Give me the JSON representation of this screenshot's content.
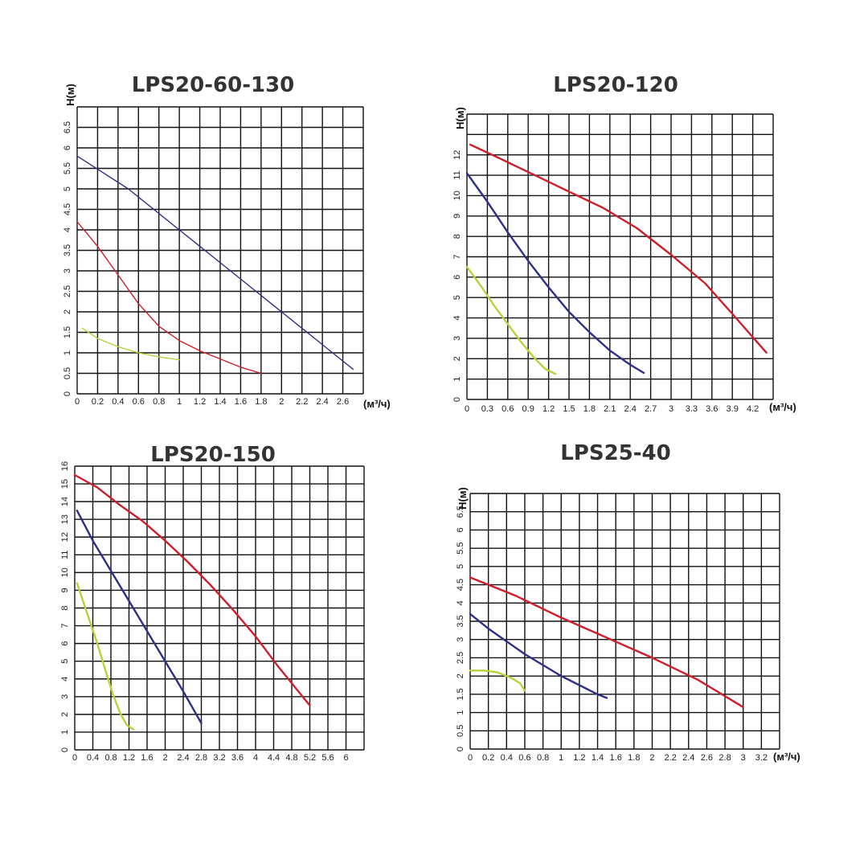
{
  "chart_data": [
    {
      "type": "line",
      "title": "LPS20-60-130",
      "ylabel": "H(м)",
      "xunit": "(м³/ч)",
      "xlim": [
        0,
        2.8
      ],
      "ylim": [
        0,
        7
      ],
      "xticks": [
        0,
        0.2,
        0.4,
        0.6,
        0.8,
        1,
        1.2,
        1.4,
        1.6,
        1.8,
        2,
        2.2,
        2.4,
        2.6
      ],
      "xtick_labels": [
        "0",
        "0.2",
        "0.4",
        "0.6",
        "0.8",
        "1",
        "1.2",
        "1.4",
        "1.6",
        "1.8",
        "2",
        "2.2",
        "2.4",
        "2.6"
      ],
      "yticks": [
        0,
        0.5,
        1,
        1.5,
        2,
        2.5,
        3,
        3.5,
        4,
        4.5,
        5,
        5.5,
        6,
        6.5
      ],
      "ytick_labels": [
        "0",
        "0.5",
        "1",
        "1.5",
        "2",
        "2.5",
        "3",
        "3.5",
        "4",
        "4.5",
        "5",
        "5.5",
        "6",
        "6.5"
      ],
      "series": [
        {
          "color": "#2f2f86",
          "points": [
            [
              0,
              5.8
            ],
            [
              0.5,
              5.0
            ],
            [
              1.0,
              4.0
            ],
            [
              1.5,
              3.0
            ],
            [
              2.0,
              2.0
            ],
            [
              2.5,
              1.0
            ],
            [
              2.7,
              0.6
            ]
          ]
        },
        {
          "color": "#cc1f2b",
          "points": [
            [
              0,
              4.2
            ],
            [
              0.2,
              3.6
            ],
            [
              0.4,
              2.9
            ],
            [
              0.6,
              2.2
            ],
            [
              0.8,
              1.65
            ],
            [
              1.0,
              1.3
            ],
            [
              1.2,
              1.05
            ],
            [
              1.4,
              0.85
            ],
            [
              1.6,
              0.65
            ],
            [
              1.8,
              0.5
            ]
          ]
        },
        {
          "color": "#b5d33b",
          "points": [
            [
              0.05,
              1.6
            ],
            [
              0.2,
              1.35
            ],
            [
              0.4,
              1.15
            ],
            [
              0.6,
              1.0
            ],
            [
              0.8,
              0.9
            ],
            [
              1.0,
              0.83
            ]
          ]
        }
      ]
    },
    {
      "type": "line",
      "title": "LPS20-120",
      "ylabel": "H(м)",
      "xunit": "(м³/ч)",
      "xlim": [
        0,
        4.5
      ],
      "ylim": [
        0,
        14
      ],
      "xticks": [
        0,
        0.3,
        0.6,
        0.9,
        1.2,
        1.5,
        1.8,
        2.1,
        2.4,
        2.7,
        3,
        3.3,
        3.6,
        3.9,
        4.2
      ],
      "xtick_labels": [
        "0",
        "0.3",
        "0.6",
        "0.9",
        "1.2",
        "1.5",
        "1.8",
        "2.1",
        "2.4",
        "2.7",
        "3",
        "3.3",
        "3.6",
        "3.9",
        "4.2"
      ],
      "yticks": [
        0,
        1,
        2,
        3,
        4,
        5,
        6,
        7,
        8,
        9,
        10,
        11,
        12
      ],
      "ytick_labels": [
        "0",
        "1",
        "2",
        "3",
        "4",
        "5",
        "6",
        "7",
        "8",
        "9",
        "10",
        "11",
        "12"
      ],
      "series": [
        {
          "color": "#cc1f2b",
          "points": [
            [
              0.05,
              12.5
            ],
            [
              0.5,
              11.8
            ],
            [
              1.0,
              11.0
            ],
            [
              1.5,
              10.2
            ],
            [
              2.0,
              9.4
            ],
            [
              2.5,
              8.4
            ],
            [
              3.0,
              7.1
            ],
            [
              3.5,
              5.7
            ],
            [
              3.9,
              4.2
            ],
            [
              4.4,
              2.3
            ]
          ]
        },
        {
          "color": "#2f2f86",
          "points": [
            [
              0,
              11.1
            ],
            [
              0.3,
              9.7
            ],
            [
              0.6,
              8.2
            ],
            [
              0.9,
              6.8
            ],
            [
              1.2,
              5.5
            ],
            [
              1.5,
              4.3
            ],
            [
              1.8,
              3.3
            ],
            [
              2.1,
              2.4
            ],
            [
              2.4,
              1.7
            ],
            [
              2.6,
              1.3
            ]
          ]
        },
        {
          "color": "#b5d33b",
          "points": [
            [
              0,
              6.5
            ],
            [
              0.2,
              5.6
            ],
            [
              0.4,
              4.6
            ],
            [
              0.6,
              3.7
            ],
            [
              0.8,
              2.8
            ],
            [
              1.0,
              2.0
            ],
            [
              1.15,
              1.5
            ],
            [
              1.3,
              1.25
            ]
          ]
        }
      ]
    },
    {
      "type": "line",
      "title": "LPS20-150",
      "ylabel": "",
      "xunit": "",
      "xlim": [
        0,
        6.4
      ],
      "ylim": [
        0,
        16
      ],
      "xticks": [
        0,
        0.4,
        0.8,
        1.2,
        1.6,
        2,
        2.4,
        2.8,
        3.2,
        3.6,
        4,
        4.4,
        4.8,
        5.2,
        5.6,
        6
      ],
      "xtick_labels": [
        "0",
        "0.4",
        "0.8",
        "1.2",
        "1.6",
        "2",
        "2.4",
        "2.8",
        "3.2",
        "3.6",
        "4",
        "4.4",
        "4.8",
        "5.2",
        "5.6",
        "6"
      ],
      "yticks": [
        0,
        1,
        2,
        3,
        4,
        5,
        6,
        7,
        8,
        9,
        10,
        11,
        12,
        13,
        14,
        15,
        16
      ],
      "ytick_labels": [
        "0",
        "1",
        "2",
        "3",
        "4",
        "5",
        "6",
        "7",
        "8",
        "9",
        "10",
        "11",
        "12",
        "13",
        "14",
        "15",
        "16"
      ],
      "series": [
        {
          "color": "#cc1f2b",
          "points": [
            [
              0,
              15.5
            ],
            [
              0.5,
              14.8
            ],
            [
              1.0,
              13.8
            ],
            [
              1.5,
              12.9
            ],
            [
              2.0,
              11.8
            ],
            [
              2.5,
              10.6
            ],
            [
              3.0,
              9.3
            ],
            [
              3.5,
              7.9
            ],
            [
              4.0,
              6.4
            ],
            [
              4.5,
              4.7
            ],
            [
              5.2,
              2.5
            ]
          ]
        },
        {
          "color": "#2f2f86",
          "points": [
            [
              0.05,
              13.5
            ],
            [
              0.4,
              11.8
            ],
            [
              0.8,
              10.1
            ],
            [
              1.2,
              8.4
            ],
            [
              1.6,
              6.7
            ],
            [
              2.0,
              5.0
            ],
            [
              2.4,
              3.3
            ],
            [
              2.8,
              1.5
            ]
          ]
        },
        {
          "color": "#b5d33b",
          "points": [
            [
              0.05,
              9.4
            ],
            [
              0.3,
              7.5
            ],
            [
              0.5,
              6.0
            ],
            [
              0.7,
              4.3
            ],
            [
              0.85,
              3.1
            ],
            [
              1.0,
              2.1
            ],
            [
              1.15,
              1.4
            ],
            [
              1.3,
              1.15
            ]
          ]
        }
      ]
    },
    {
      "type": "line",
      "title": "LPS25-40",
      "ylabel": "H(м)",
      "xunit": "(м³/ч)",
      "xlim": [
        0,
        3.4
      ],
      "ylim": [
        0,
        7
      ],
      "xticks": [
        0,
        0.2,
        0.4,
        0.6,
        0.8,
        1,
        1.2,
        1.4,
        1.6,
        1.8,
        2,
        2.2,
        2.4,
        2.6,
        2.8,
        3,
        3.2
      ],
      "xtick_labels": [
        "0",
        "0.2",
        "0.4",
        "0.6",
        "0.8",
        "1",
        "1.2",
        "1.4",
        "1.6",
        "1.8",
        "2",
        "2.2",
        "2.4",
        "2.6",
        "2.8",
        "3",
        "3.2"
      ],
      "yticks": [
        0,
        0.5,
        1,
        1.5,
        2,
        2.5,
        3,
        3.5,
        4,
        4.5,
        5,
        5.5,
        6,
        6.5
      ],
      "ytick_labels": [
        "0",
        "0.5",
        "1",
        "1.5",
        "2",
        "2.5",
        "3",
        "3.5",
        "4",
        "4.5",
        "5",
        "5.5",
        "6",
        "6.5"
      ],
      "series": [
        {
          "color": "#cc1f2b",
          "points": [
            [
              0,
              4.7
            ],
            [
              0.5,
              4.2
            ],
            [
              1.0,
              3.6
            ],
            [
              1.5,
              3.05
            ],
            [
              2.0,
              2.5
            ],
            [
              2.5,
              1.9
            ],
            [
              3.0,
              1.15
            ]
          ]
        },
        {
          "color": "#2f2f86",
          "points": [
            [
              0,
              3.7
            ],
            [
              0.2,
              3.3
            ],
            [
              0.4,
              2.95
            ],
            [
              0.6,
              2.6
            ],
            [
              0.8,
              2.3
            ],
            [
              1.0,
              2.0
            ],
            [
              1.2,
              1.75
            ],
            [
              1.4,
              1.5
            ],
            [
              1.5,
              1.4
            ]
          ]
        },
        {
          "color": "#b5d33b",
          "points": [
            [
              0,
              2.15
            ],
            [
              0.15,
              2.15
            ],
            [
              0.3,
              2.1
            ],
            [
              0.45,
              1.95
            ],
            [
              0.55,
              1.8
            ],
            [
              0.6,
              1.6
            ]
          ]
        }
      ]
    }
  ]
}
